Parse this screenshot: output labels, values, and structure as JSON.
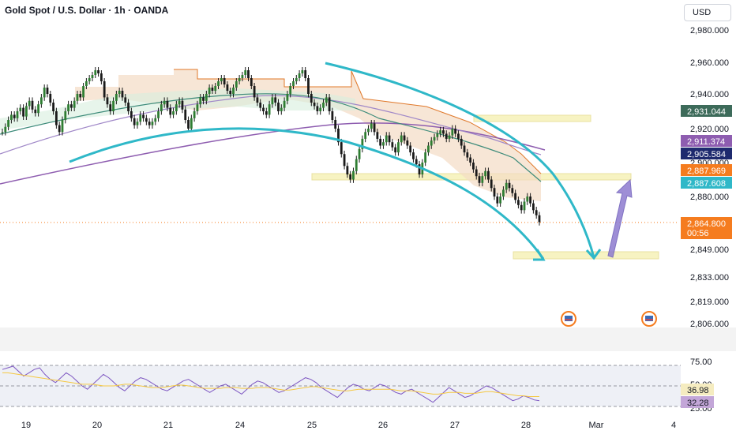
{
  "header": {
    "title": "Gold Spot / U.S. Dollar · 1h · OANDA",
    "currency": "USD"
  },
  "chart_data": [
    {
      "type": "candlestick",
      "title": "Gold Spot / U.S. Dollar · 1h · OANDA",
      "ylim": [
        2806,
        2985
      ],
      "y_ticks": [
        "2,980.000",
        "2,960.000",
        "2,940.000",
        "2,920.000",
        "2,900.000",
        "2,880.000",
        "2,849.000",
        "2,833.000",
        "2,819.000",
        "2,806.000"
      ],
      "x_ticks": [
        "19",
        "20",
        "21",
        "24",
        "25",
        "26",
        "27",
        "28",
        "Mar",
        "4"
      ],
      "price_labels": [
        {
          "value": "2,931.044",
          "color": "#3d6b5a"
        },
        {
          "value": "2,911.374",
          "color": "#8e5db0"
        },
        {
          "value": "2,905.584",
          "color": "#1e2a6e"
        },
        {
          "value": "2,887.969",
          "color": "#f57c1f"
        },
        {
          "value": "2,887.608",
          "color": "#2fb8c8"
        },
        {
          "value": "2,864.800",
          "color": "#f57c1f"
        }
      ],
      "countdown": "00:56",
      "last_price": 2864.8,
      "series": [
        {
          "kind": "close_path",
          "values": [
            2918,
            2921,
            2925,
            2928,
            2926,
            2930,
            2932,
            2927,
            2933,
            2936,
            2931,
            2929,
            2934,
            2938,
            2944,
            2940,
            2935,
            2930,
            2922,
            2918,
            2925,
            2930,
            2934,
            2932,
            2936,
            2940,
            2938,
            2945,
            2948,
            2950,
            2952,
            2955,
            2953,
            2948,
            2938,
            2934,
            2930,
            2936,
            2940,
            2942,
            2938,
            2935,
            2930,
            2926,
            2922,
            2924,
            2928,
            2926,
            2924,
            2922,
            2924,
            2926,
            2930,
            2934,
            2936,
            2932,
            2928,
            2930,
            2934,
            2936,
            2931,
            2925,
            2920,
            2926,
            2930,
            2934,
            2938,
            2936,
            2940,
            2944,
            2942,
            2945,
            2948,
            2950,
            2946,
            2942,
            2940,
            2944,
            2948,
            2950,
            2952,
            2955,
            2950,
            2945,
            2938,
            2935,
            2932,
            2930,
            2928,
            2934,
            2938,
            2935,
            2930,
            2932,
            2936,
            2940,
            2945,
            2948,
            2950,
            2953,
            2955,
            2950,
            2940,
            2935,
            2933,
            2930,
            2932,
            2935,
            2938,
            2930,
            2925,
            2920,
            2912,
            2905,
            2898,
            2893,
            2890,
            2895,
            2902,
            2908,
            2914,
            2918,
            2920,
            2923,
            2918,
            2914,
            2910,
            2912,
            2916,
            2912,
            2909,
            2906,
            2912,
            2916,
            2913,
            2910,
            2906,
            2902,
            2899,
            2893,
            2900,
            2906,
            2910,
            2913,
            2915,
            2917,
            2919,
            2917,
            2914,
            2916,
            2920,
            2917,
            2914,
            2910,
            2906,
            2903,
            2900,
            2896,
            2892,
            2888,
            2892,
            2895,
            2890,
            2885,
            2880,
            2876,
            2880,
            2884,
            2888,
            2885,
            2882,
            2878,
            2875,
            2872,
            2877,
            2880,
            2876,
            2872,
            2869,
            2865
          ]
        }
      ]
    },
    {
      "type": "line",
      "title": "",
      "ylim": [
        25,
        75
      ],
      "y_ticks": [
        "75.00",
        "50.00",
        "25.00"
      ],
      "value_labels": [
        {
          "value": "36.98",
          "color": "#f5ecc0"
        },
        {
          "value": "32.28",
          "color": "#c3a6d8"
        }
      ],
      "series": [
        {
          "kind": "rsi",
          "values": [
            70,
            72,
            74,
            68,
            62,
            66,
            70,
            72,
            64,
            58,
            54,
            60,
            66,
            62,
            56,
            50,
            46,
            52,
            58,
            64,
            60,
            54,
            48,
            44,
            50,
            56,
            60,
            58,
            54,
            50,
            46,
            44,
            48,
            52,
            56,
            58,
            54,
            50,
            46,
            42,
            46,
            50,
            52,
            48,
            44,
            40,
            46,
            52,
            56,
            54,
            50,
            46,
            42,
            44,
            48,
            52,
            56,
            60,
            58,
            54,
            48,
            44,
            40,
            36,
            42,
            48,
            52,
            50,
            46,
            44,
            48,
            52,
            50,
            46,
            42,
            40,
            44,
            46,
            42,
            38,
            34,
            30,
            36,
            42,
            48,
            44,
            40,
            36,
            38,
            42,
            46,
            50,
            48,
            44,
            40,
            36,
            32,
            34,
            38,
            36,
            33,
            32
          ]
        },
        {
          "kind": "rsi_ma",
          "values": [
            66,
            66,
            65,
            64,
            63,
            62,
            61,
            60,
            59,
            58,
            57,
            56,
            55,
            54,
            53,
            52,
            52,
            52,
            51,
            50,
            50,
            50,
            51,
            52,
            52,
            51,
            50,
            49,
            48,
            48,
            48,
            49,
            50,
            51,
            51,
            50,
            49,
            48,
            47,
            47,
            47,
            47,
            48,
            48,
            48,
            47,
            47,
            47,
            48,
            48,
            48,
            47,
            46,
            45,
            45,
            46,
            47,
            48,
            49,
            49,
            48,
            47,
            46,
            45,
            44,
            44,
            45,
            46,
            46,
            46,
            46,
            46,
            46,
            46,
            45,
            44,
            44,
            44,
            43,
            42,
            41,
            40,
            40,
            41,
            42,
            42,
            42,
            41,
            41,
            41,
            42,
            43,
            43,
            42,
            41,
            40,
            39,
            38,
            38,
            37,
            37,
            37
          ]
        }
      ]
    }
  ]
}
